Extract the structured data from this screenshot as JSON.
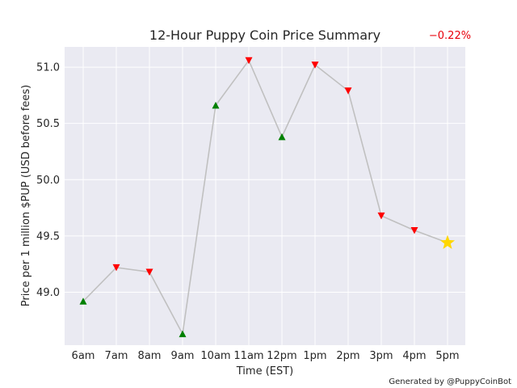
{
  "chart_data": {
    "type": "line",
    "title": "12-Hour Puppy Coin Price Summary",
    "change_label": "−0.22%",
    "xlabel": "Time (EST)",
    "ylabel": "Price per 1 million $PUP (USD before fees)",
    "credit": "Generated by @PuppyCoinBot",
    "categories": [
      "6am",
      "7am",
      "8am",
      "9am",
      "10am",
      "11am",
      "12pm",
      "1pm",
      "2pm",
      "3pm",
      "4pm",
      "5pm"
    ],
    "values": [
      48.92,
      49.22,
      49.18,
      48.63,
      50.66,
      51.06,
      50.38,
      51.02,
      50.79,
      49.68,
      49.55,
      49.44
    ],
    "markers": [
      "up",
      "down",
      "down",
      "up",
      "up",
      "down",
      "up",
      "down",
      "down",
      "down",
      "down",
      "star"
    ],
    "yticks": [
      49.0,
      49.5,
      50.0,
      50.5,
      51.0
    ],
    "ylim": [
      48.53,
      51.18
    ],
    "grid": true,
    "colors": {
      "background": "#eaeaf2",
      "grid": "#ffffff",
      "line": "#c0c0c0",
      "up": "#008000",
      "down": "#ff0000",
      "current": "#ffd700",
      "change": "#e8000b"
    }
  }
}
